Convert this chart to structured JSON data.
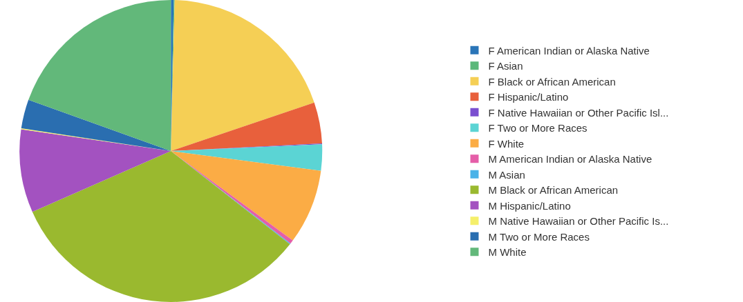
{
  "chart_data": {
    "type": "pie",
    "categories": [
      "F American Indian or Alaska Native",
      "F Asian",
      "F Black or African American",
      "F Hispanic/Latino",
      "F Native Hawaiian or Other Pacific Isl...",
      "F Two or More Races",
      "F White",
      "M American Indian or Alaska Native",
      "M Asian",
      "M Black or African American",
      "M Hispanic/Latino",
      "M Native Hawaiian or Other Pacific Is...",
      "M Two or More Races",
      "M White"
    ],
    "values": [
      0.3,
      0.1,
      19.4,
      4.4,
      0.1,
      2.8,
      8.0,
      0.4,
      0.1,
      32.8,
      8.9,
      0.1,
      3.1,
      19.5
    ],
    "colors": [
      "#2a75b8",
      "#5bb87a",
      "#f5cf55",
      "#e8603c",
      "#7a4fd0",
      "#5bd4d4",
      "#fbac45",
      "#e55ea8",
      "#4ab2e8",
      "#9ab92f",
      "#a352c0",
      "#f5ef6a",
      "#2a6eb0",
      "#62b87a"
    ],
    "legend": "right"
  }
}
